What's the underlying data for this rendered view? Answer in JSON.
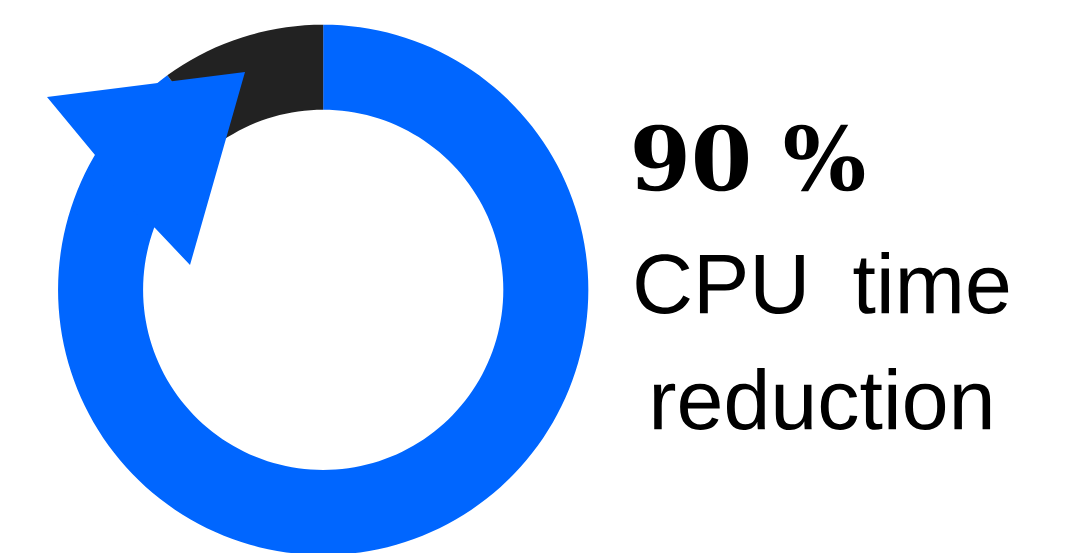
{
  "chart_data": {
    "type": "donut",
    "title": "90 %",
    "subtitle": "CPU time reduction",
    "categories": [
      null,
      null
    ],
    "values": [
      90,
      10
    ],
    "colors": [
      "#0066ff",
      "#222222"
    ]
  }
}
